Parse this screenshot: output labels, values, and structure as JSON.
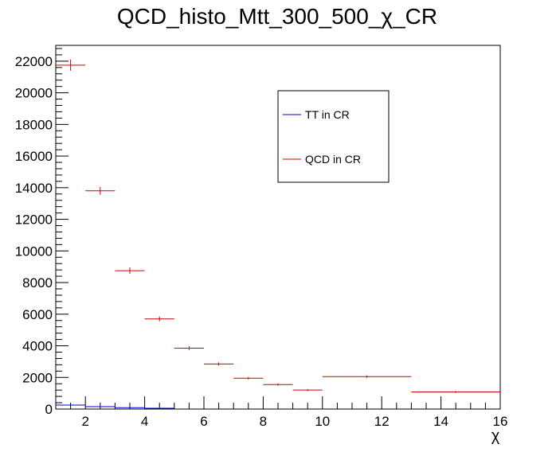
{
  "chart_data": {
    "type": "histogram",
    "title": "QCD_histo_Mtt_300_500_χ_CR",
    "xlabel": "χ",
    "ylabel": "",
    "xlim": [
      1,
      16
    ],
    "ylim": [
      0,
      23000
    ],
    "x_ticks": [
      2,
      4,
      6,
      8,
      10,
      12,
      14,
      16
    ],
    "y_ticks": [
      0,
      2000,
      4000,
      6000,
      8000,
      10000,
      12000,
      14000,
      16000,
      18000,
      20000,
      22000
    ],
    "grid": false,
    "legend_position": "top-center",
    "series": [
      {
        "name": "TT in CR",
        "color": "#0000cc",
        "bins": [
          {
            "x_low": 1,
            "x_high": 2,
            "value": 250
          },
          {
            "x_low": 2,
            "x_high": 3,
            "value": 150
          },
          {
            "x_low": 3,
            "x_high": 4,
            "value": 90
          },
          {
            "x_low": 4,
            "x_high": 5,
            "value": 50
          }
        ]
      },
      {
        "name": "QCD in CR",
        "color": "#cc0000",
        "bins": [
          {
            "x_low": 1,
            "x_high": 2,
            "value": 21750,
            "error": 350
          },
          {
            "x_low": 2,
            "x_high": 3,
            "value": 13800,
            "error": 250
          },
          {
            "x_low": 3,
            "x_high": 4,
            "value": 8750,
            "error": 200
          },
          {
            "x_low": 4,
            "x_high": 5,
            "value": 5700,
            "error": 150
          },
          {
            "x_low": 5,
            "x_high": 6,
            "value": 3850,
            "error": 120
          },
          {
            "x_low": 6,
            "x_high": 7,
            "value": 2850,
            "error": 100
          },
          {
            "x_low": 7,
            "x_high": 8,
            "value": 1950,
            "error": 80
          },
          {
            "x_low": 8,
            "x_high": 9,
            "value": 1550,
            "error": 70
          },
          {
            "x_low": 9,
            "x_high": 10,
            "value": 1200,
            "error": 60
          },
          {
            "x_low": 10,
            "x_high": 13,
            "value": 2050,
            "error": 80
          },
          {
            "x_low": 13,
            "x_high": 16,
            "value": 1080,
            "error": 60
          }
        ]
      }
    ]
  }
}
